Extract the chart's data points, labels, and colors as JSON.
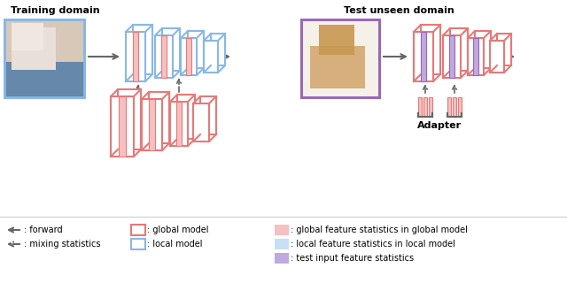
{
  "bg_color": "#ffffff",
  "title_train": "Training domain",
  "title_test": "Test unseen domain",
  "adapter_label": "Adapter",
  "color_global_border": "#e87878",
  "color_local_border": "#88b8e8",
  "color_global_fill": "#f5c0c0",
  "color_local_fill": "#c8dff5",
  "color_purple_fill": "#c0a8e0",
  "color_arrow": "#666666",
  "color_photo_border_train": "#88b8e8",
  "color_photo_border_test": "#9966bb"
}
